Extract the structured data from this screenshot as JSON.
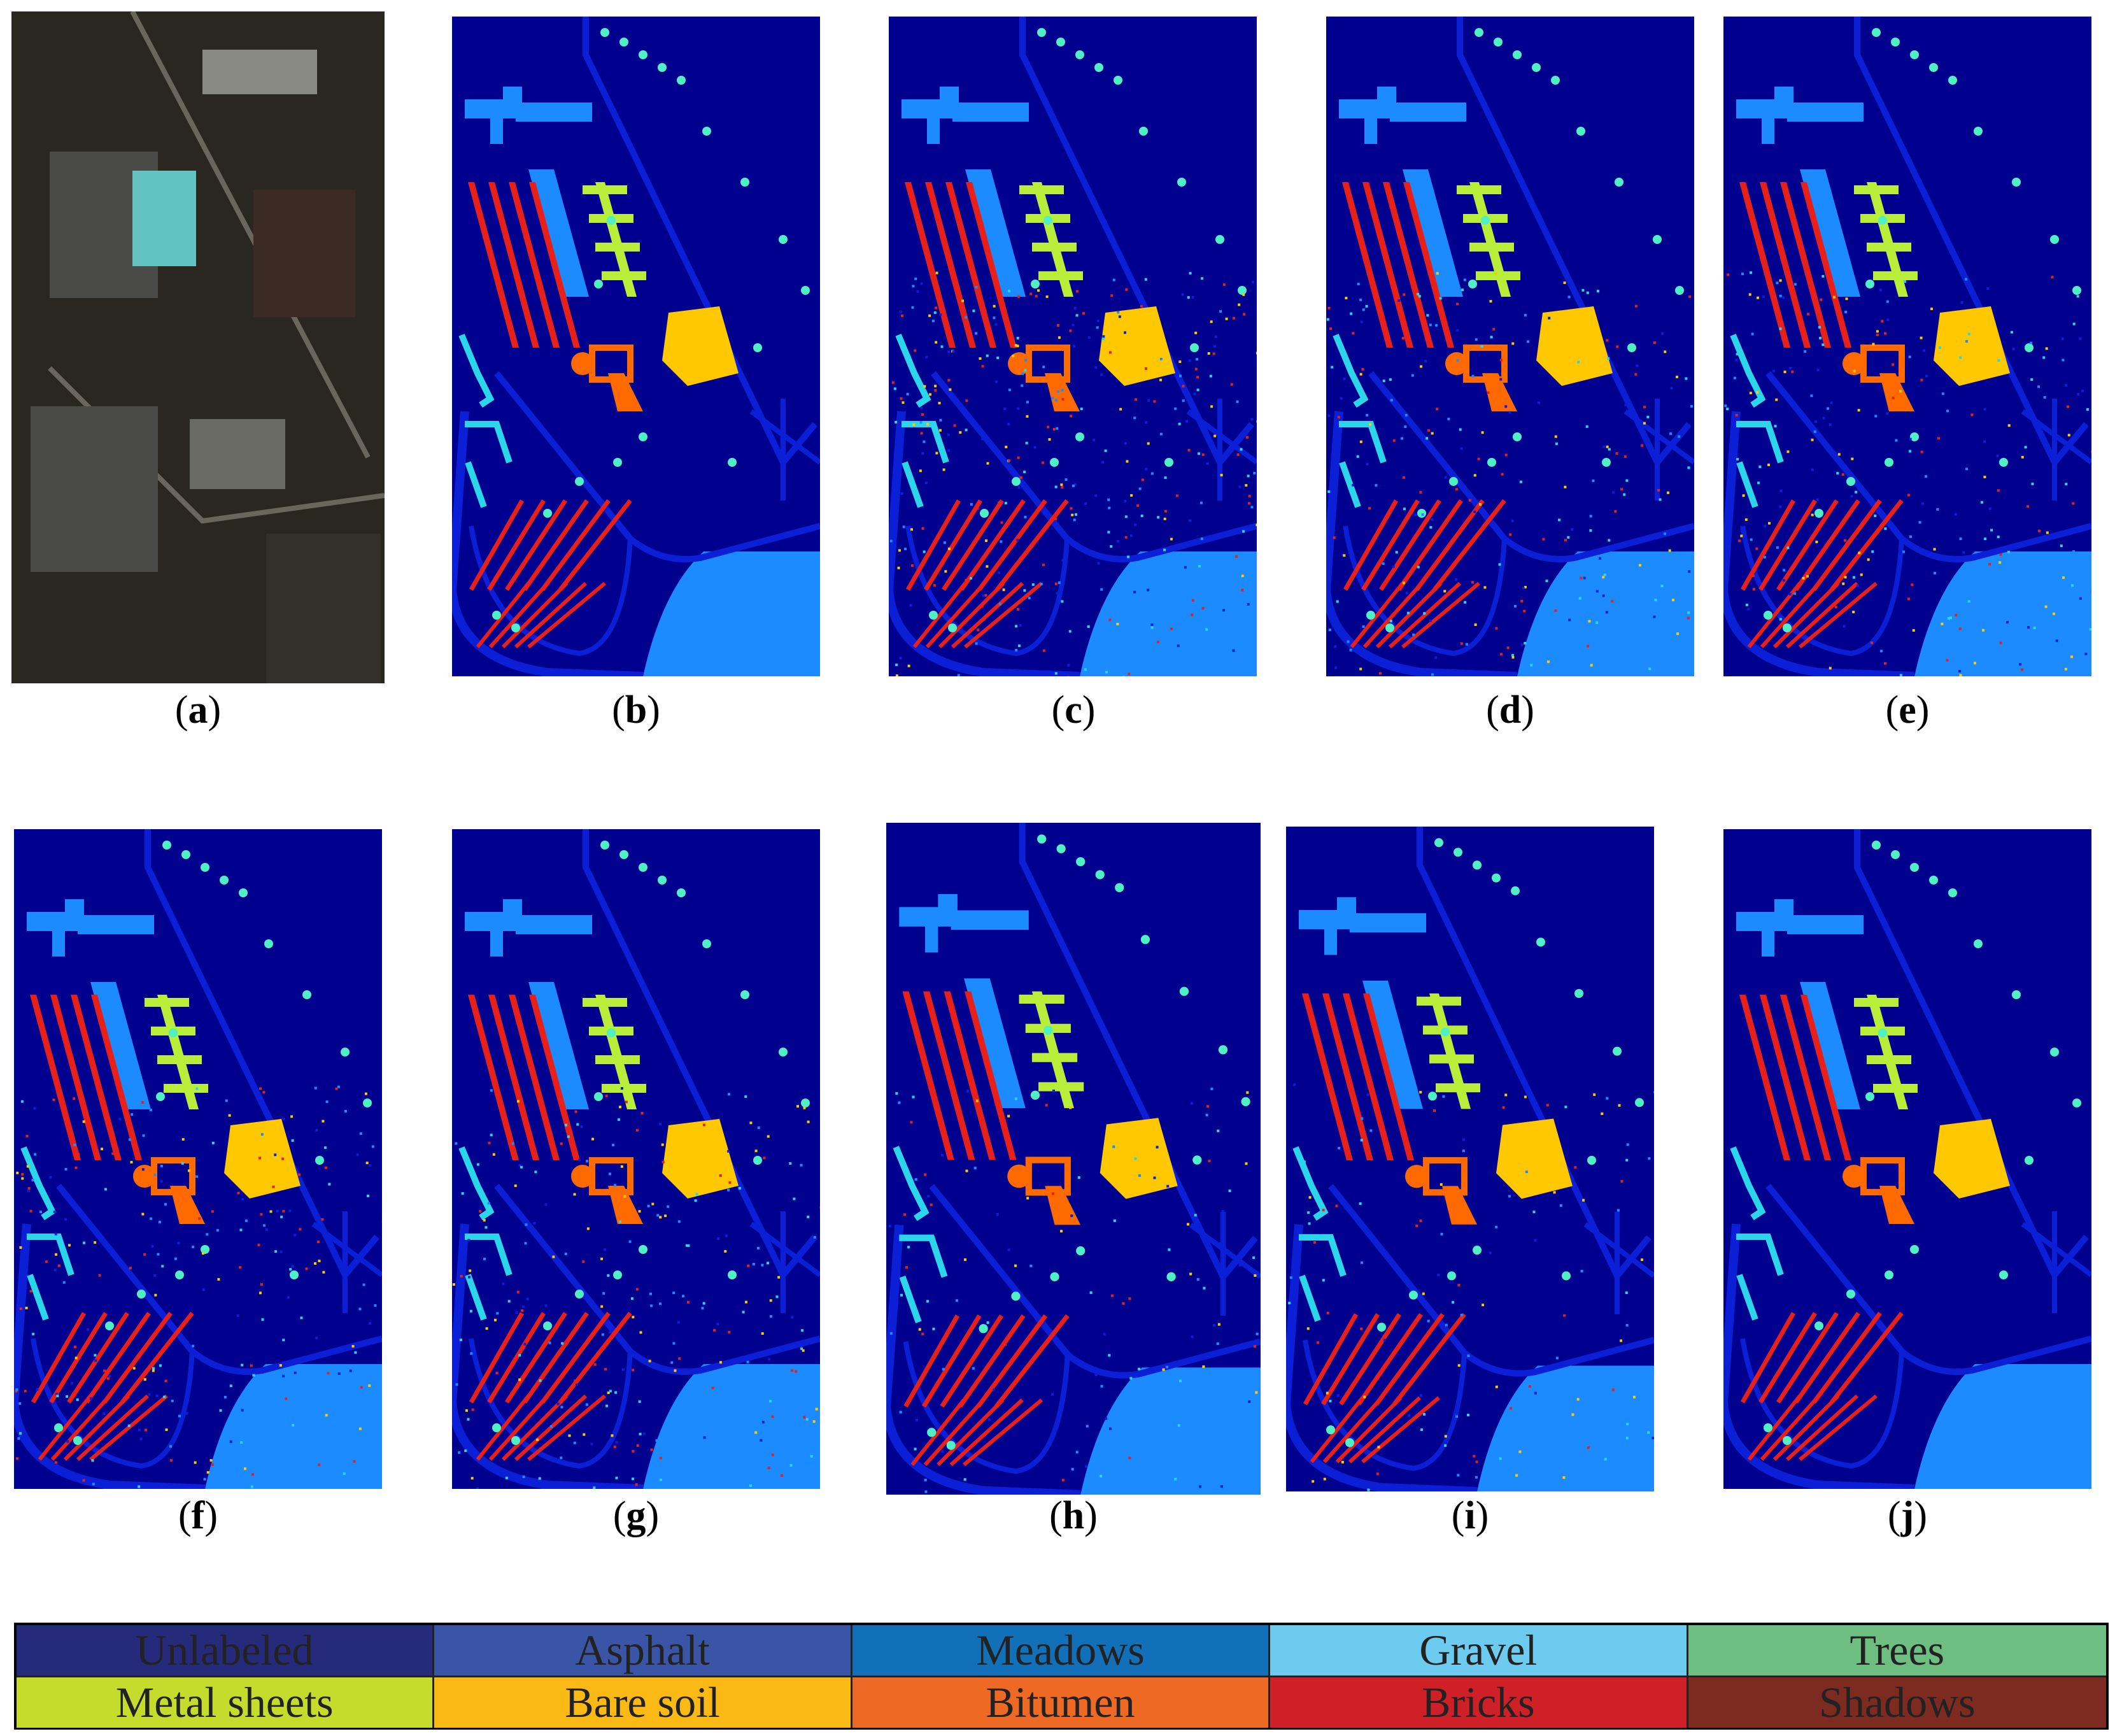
{
  "figure": {
    "panels": [
      {
        "label": "a",
        "kind": "rgb",
        "background": "#2a2620"
      },
      {
        "label": "b",
        "kind": "map",
        "noise": 0
      },
      {
        "label": "c",
        "kind": "map",
        "noise": 3
      },
      {
        "label": "d",
        "kind": "map",
        "noise": 2
      },
      {
        "label": "e",
        "kind": "map",
        "noise": 2
      },
      {
        "label": "f",
        "kind": "map",
        "noise": 2
      },
      {
        "label": "g",
        "kind": "map",
        "noise": 2
      },
      {
        "label": "h",
        "kind": "map",
        "noise": 1
      },
      {
        "label": "i",
        "kind": "map",
        "noise": 1
      },
      {
        "label": "j",
        "kind": "map",
        "noise": 0
      }
    ],
    "caption_format": "(x)"
  },
  "legend": {
    "items": [
      {
        "name": "Unlabeled",
        "color": "#262a7a"
      },
      {
        "name": "Asphalt",
        "color": "#3a55a5"
      },
      {
        "name": "Meadows",
        "color": "#1170b8"
      },
      {
        "name": "Gravel",
        "color": "#6ecbf0"
      },
      {
        "name": "Trees",
        "color": "#6dbe80"
      },
      {
        "name": "Metal sheets",
        "color": "#c6dc2c"
      },
      {
        "name": "Bare soil",
        "color": "#fbb915"
      },
      {
        "name": "Bitumen",
        "color": "#ee6a24"
      },
      {
        "name": "Bricks",
        "color": "#d02027"
      },
      {
        "name": "Shadows",
        "color": "#7d2a21"
      }
    ]
  },
  "map_colors": {
    "background": "#00008f",
    "asphalt": "#0a1fd6",
    "meadows": "#1c8bff",
    "gravel": "#2bd6ea",
    "trees": "#4ff0c4",
    "metal": "#b6ee3a",
    "soil": "#ffc800",
    "bitumen": "#ff6a00",
    "bricks": "#e8201a",
    "shadows": "#9a1010"
  }
}
